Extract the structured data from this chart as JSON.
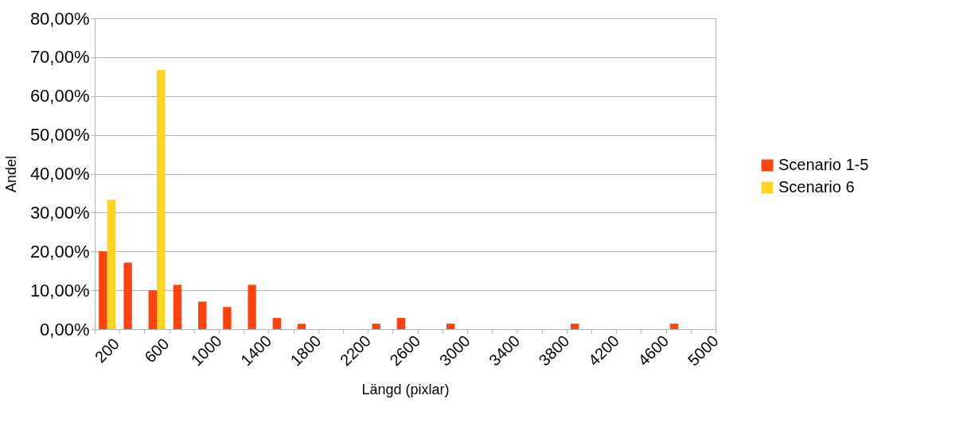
{
  "chart_data": {
    "type": "bar",
    "xlabel": "Längd (pixlar)",
    "ylabel": "Andel",
    "categories": [
      "200",
      null,
      "600",
      null,
      "1000",
      null,
      "1400",
      null,
      "1800",
      null,
      "2200",
      null,
      "2600",
      null,
      "3000",
      null,
      "3400",
      null,
      "3800",
      null,
      "4200",
      null,
      "4600",
      null,
      "5000"
    ],
    "series": [
      {
        "name": "Scenario 1-5",
        "color": "#ff420e",
        "values": [
          20.0,
          17.1,
          10.0,
          11.4,
          7.1,
          5.7,
          11.4,
          2.9,
          1.4,
          0,
          0,
          1.4,
          2.9,
          0,
          1.4,
          0,
          0,
          0,
          0,
          1.4,
          0,
          0,
          0,
          1.4,
          0
        ]
      },
      {
        "name": "Scenario 6",
        "color": "#ffd320",
        "values": [
          33.3,
          0,
          66.7,
          0,
          0,
          0,
          0,
          0,
          0,
          0,
          0,
          0,
          0,
          0,
          0,
          0,
          0,
          0,
          0,
          0,
          0,
          0,
          0,
          0,
          0
        ]
      }
    ],
    "ylim": [
      0,
      80
    ],
    "yticks": [
      {
        "value": 0,
        "label": "0,00%"
      },
      {
        "value": 10,
        "label": "10,00%"
      },
      {
        "value": 20,
        "label": "20,00%"
      },
      {
        "value": 30,
        "label": "30,00%"
      },
      {
        "value": 40,
        "label": "40,00%"
      },
      {
        "value": 50,
        "label": "50,00%"
      },
      {
        "value": 60,
        "label": "60,00%"
      },
      {
        "value": 70,
        "label": "70,00%"
      },
      {
        "value": 80,
        "label": "80,00%"
      }
    ],
    "grid": "y",
    "legend": "right"
  }
}
